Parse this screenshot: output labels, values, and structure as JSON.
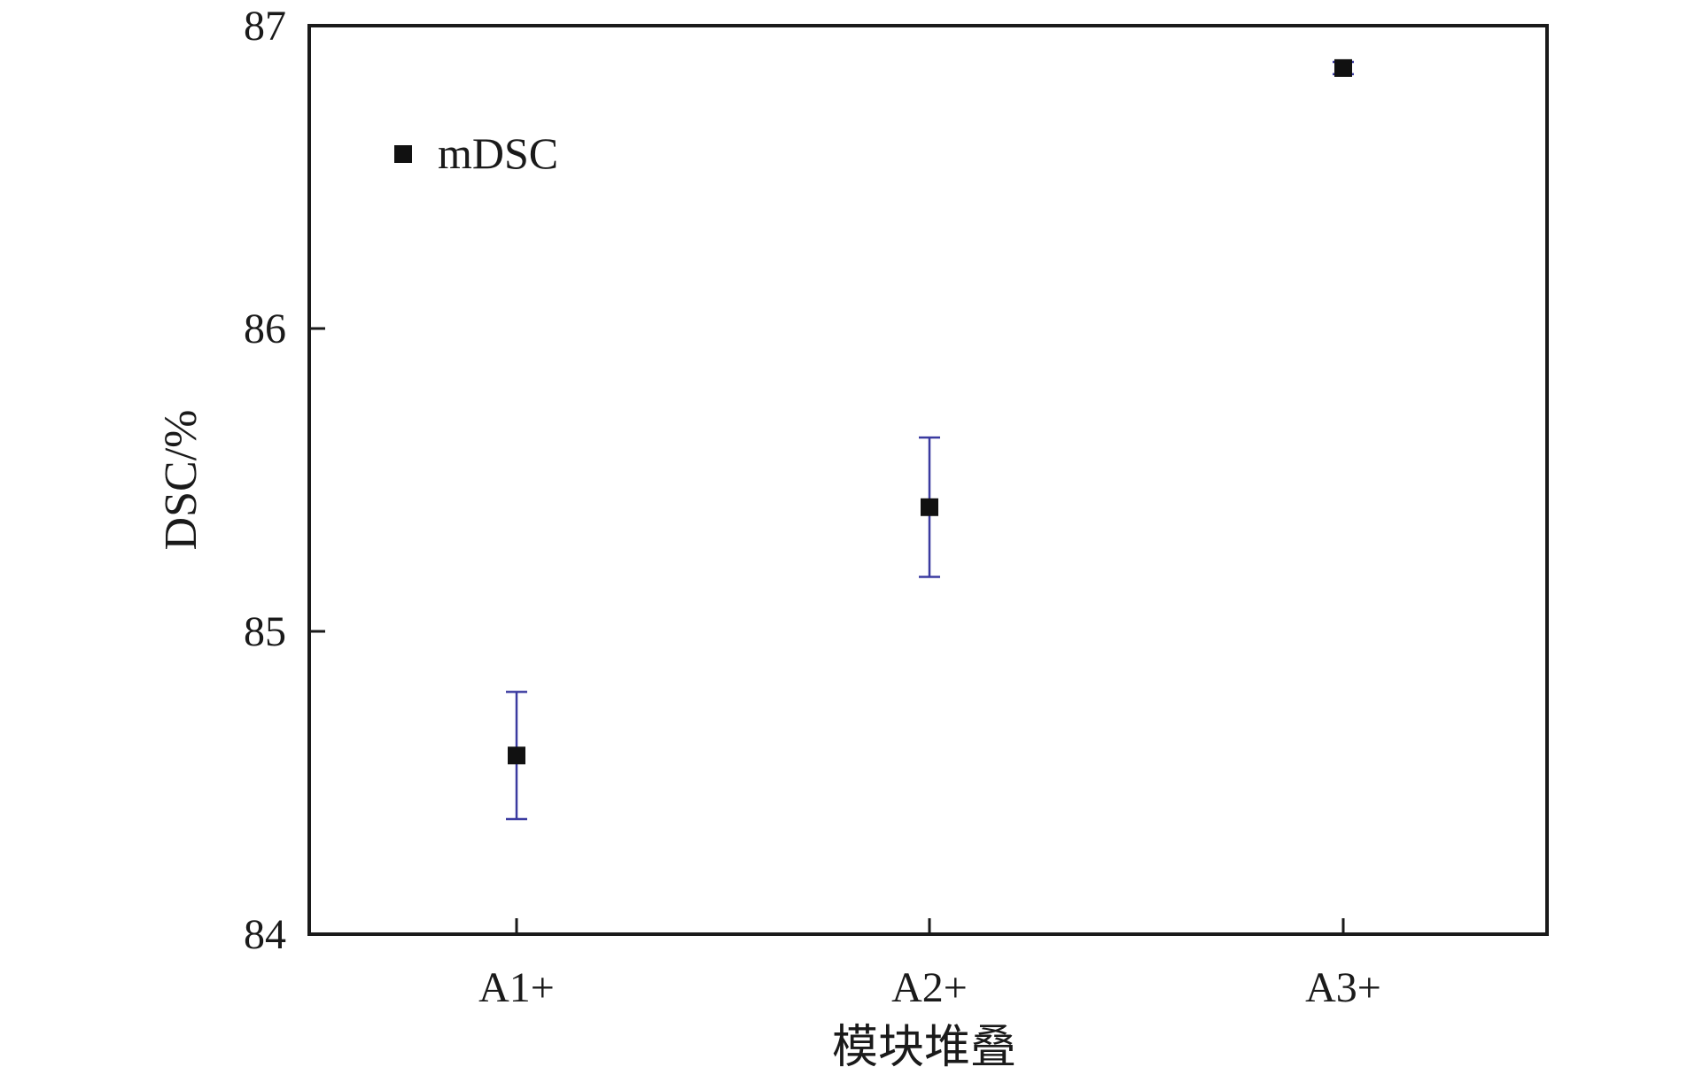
{
  "chart_data": {
    "type": "scatter",
    "categories": [
      "A1+",
      "A2+",
      "A3+"
    ],
    "series": [
      {
        "name": "mDSC",
        "values": [
          84.59,
          85.41,
          86.86
        ],
        "errors": [
          0.21,
          0.23,
          0.02
        ]
      }
    ],
    "xlabel": "模块堆叠",
    "ylabel": "DSC/%",
    "ylim": [
      84,
      87
    ],
    "yticks": [
      "84",
      "85",
      "86",
      "87"
    ],
    "grid": false,
    "legend_position": "top-left",
    "colors": {
      "marker": "#111111",
      "errorbar": "#3b3ba0",
      "axis": "#1a1a1a"
    }
  }
}
